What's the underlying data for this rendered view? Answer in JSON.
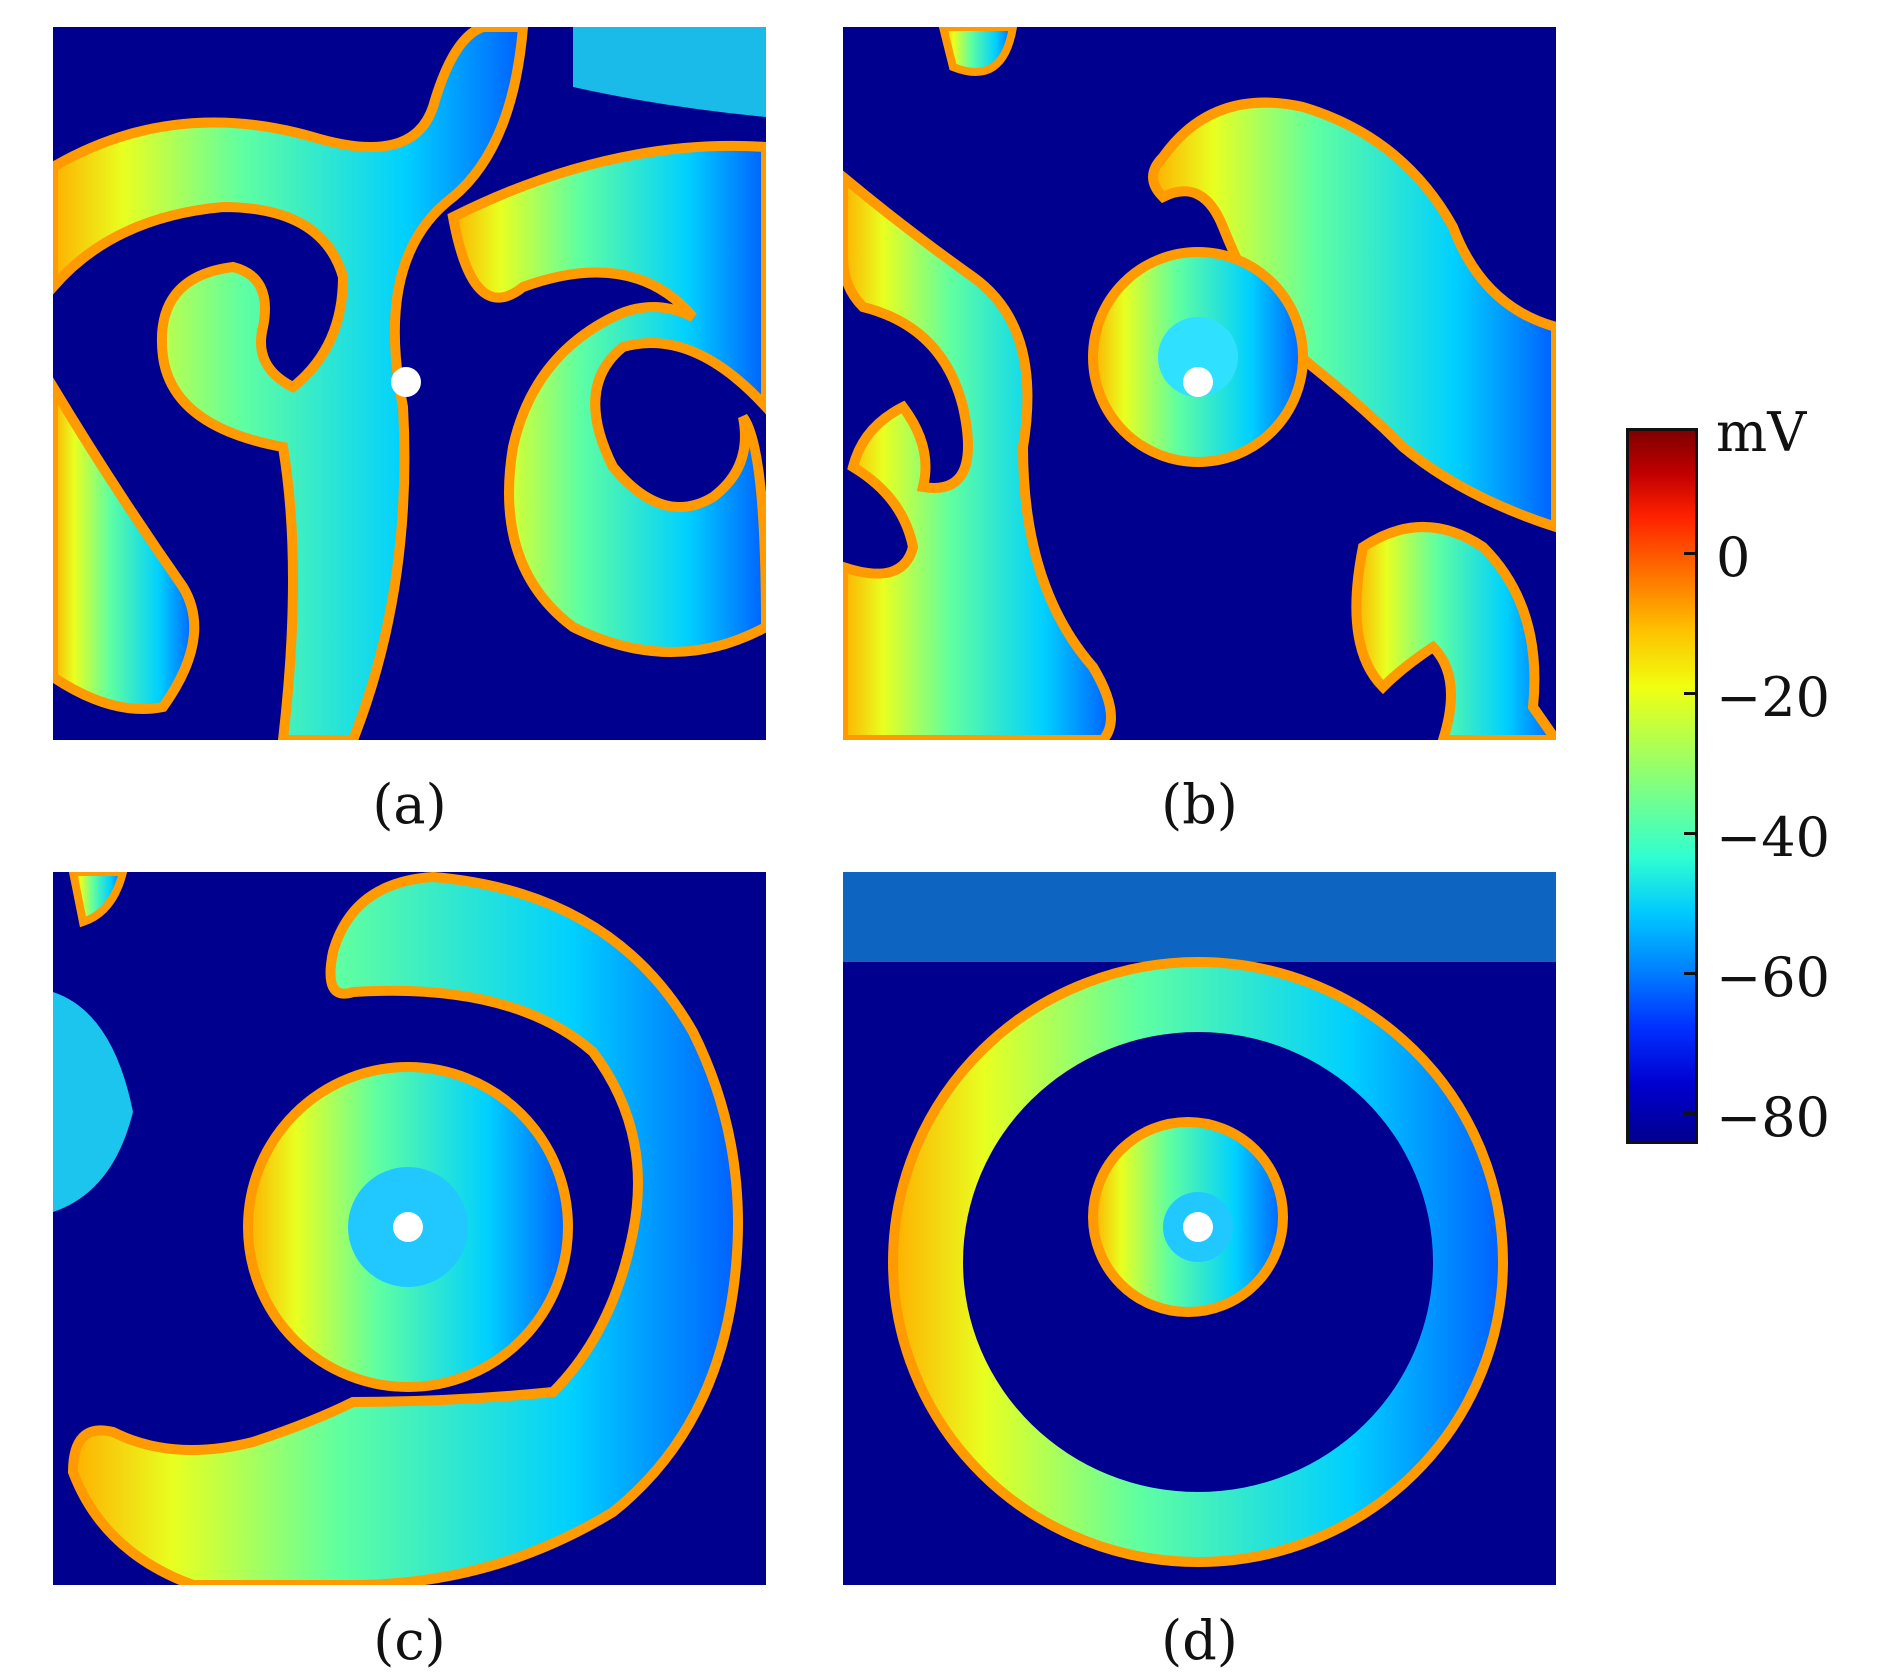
{
  "panels": [
    {
      "label": "(a)"
    },
    {
      "label": "(b)"
    },
    {
      "label": "(c)"
    },
    {
      "label": "(d)"
    }
  ],
  "colorbar": {
    "unit": "mV",
    "ticks": [
      "0",
      "−20",
      "−40",
      "−60",
      "−80"
    ],
    "colors": {
      "rest": "#00008f",
      "peak": "#800000"
    }
  }
}
